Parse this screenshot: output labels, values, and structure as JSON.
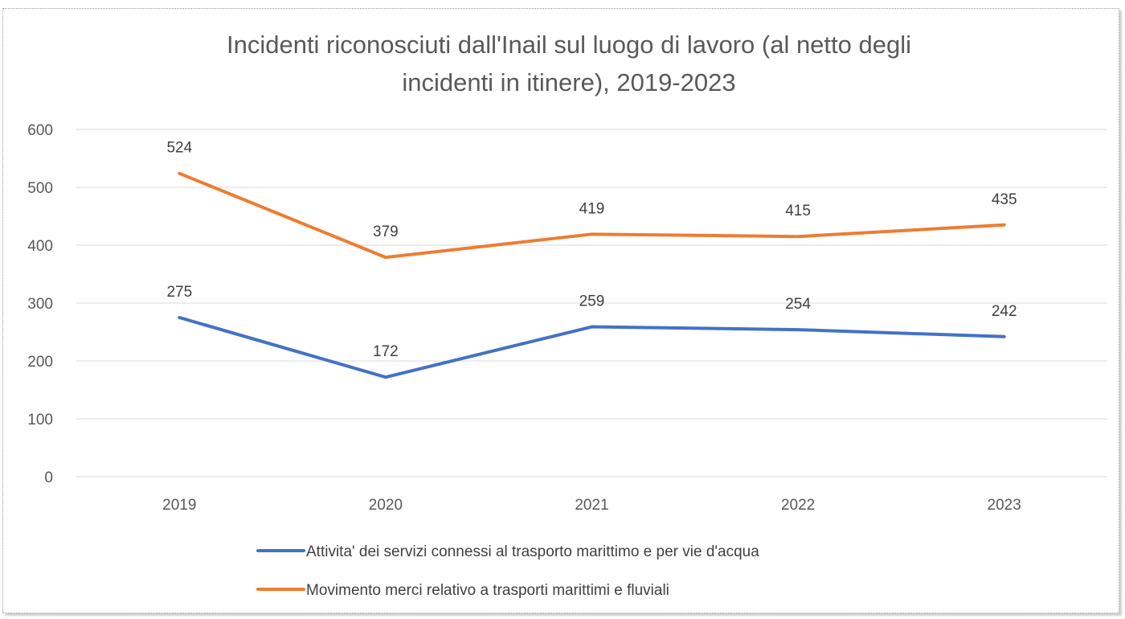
{
  "chart_data": {
    "type": "line",
    "title": "Incidenti riconosciuti dall'Inail sul luogo di lavoro (al netto degli incidenti in itinere), 2019-2023",
    "title_lines": [
      "Incidenti riconosciuti dall'Inail sul luogo di lavoro (al netto degli",
      "incidenti in itinere), 2019-2023"
    ],
    "xlabel": "",
    "ylabel": "",
    "categories": [
      "2019",
      "2020",
      "2021",
      "2022",
      "2023"
    ],
    "ylim": [
      0,
      600
    ],
    "yticks": [
      "0",
      "100",
      "200",
      "300",
      "400",
      "500",
      "600"
    ],
    "grid": true,
    "legend": "bottom",
    "series": [
      {
        "name": "Attivita' dei servizi connessi al trasporto marittimo e per vie d'acqua",
        "values": [
          275,
          172,
          259,
          254,
          242
        ],
        "color": "#4472C4"
      },
      {
        "name": "Movimento merci relativo a trasporti marittimi e fluviali",
        "values": [
          524,
          379,
          419,
          415,
          435
        ],
        "color": "#ED7D31"
      }
    ]
  }
}
